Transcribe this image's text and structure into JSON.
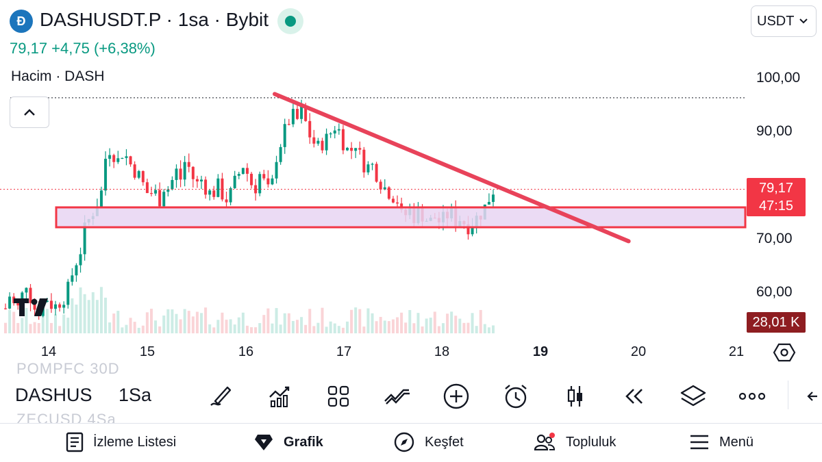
{
  "header": {
    "logo_letter": "Đ",
    "symbol_title": "DASHUSDT.P · 1sa · Bybit",
    "price_line": "79,17  +4,75 (+6,38%)",
    "volume_label": "Hacim · DASH",
    "currency": "USDT"
  },
  "colors": {
    "up": "#089981",
    "down": "#f23645",
    "zone_fill": "#e8d5f2",
    "zone_border": "#f23645",
    "trendline": "#e8435a"
  },
  "chart_data": {
    "type": "candlestick",
    "y_ticks": [
      "100,00",
      "90,00",
      "70,00",
      "60,00"
    ],
    "x_ticks": [
      "14",
      "15",
      "16",
      "17",
      "18",
      "19",
      "20",
      "21"
    ],
    "x_ticks_bold": [
      "19"
    ],
    "current_price": "79,17",
    "countdown": "47:15",
    "volume_value": "28,01 K",
    "ylim": [
      53,
      102
    ],
    "support_zone": [
      72.1,
      75.8
    ],
    "trendline": {
      "from": [
        16.3,
        96.9
      ],
      "to": [
        19.9,
        69.5
      ]
    },
    "dotted_high": 96.2,
    "ohlc_path": [
      57,
      60,
      56,
      59,
      62,
      58,
      56,
      58,
      59,
      57,
      58,
      59,
      61,
      65,
      67,
      72,
      74,
      76,
      78,
      86,
      87,
      84,
      86,
      85,
      83,
      82,
      80,
      78,
      79,
      77,
      80,
      79,
      83,
      81,
      85,
      82,
      80,
      81,
      79,
      78,
      80,
      78,
      77,
      80,
      82,
      84,
      81,
      79,
      82,
      80,
      78,
      85,
      88,
      91,
      93,
      92,
      94,
      90,
      88,
      87,
      88,
      89,
      91,
      90,
      87,
      86,
      88,
      85,
      83,
      84,
      82,
      80,
      79,
      78,
      77,
      73,
      76,
      74,
      75,
      74,
      73,
      74,
      73,
      74,
      75,
      73,
      74,
      72,
      73,
      74,
      75,
      77,
      79
    ]
  },
  "toolbar": {
    "ghost_top": "POMPFC  30D",
    "symbol": "DASHUS",
    "interval": "1Sa",
    "ghost_bottom": "ZECUSD  4Sa",
    "tools": [
      "drawing-icon",
      "indicators-icon",
      "templates-icon",
      "patterns-icon",
      "add-icon",
      "alert-icon",
      "candle-type-icon",
      "replay-icon",
      "layers-icon",
      "more-icon",
      "collapse-arrow-icon"
    ]
  },
  "tabs": [
    {
      "label": "İzleme Listesi",
      "icon": "watchlist-icon"
    },
    {
      "label": "Grafik",
      "icon": "chart-icon"
    },
    {
      "label": "Keşfet",
      "icon": "explore-icon"
    },
    {
      "label": "Topluluk",
      "icon": "community-icon"
    },
    {
      "label": "Menü",
      "icon": "menu-icon"
    }
  ]
}
